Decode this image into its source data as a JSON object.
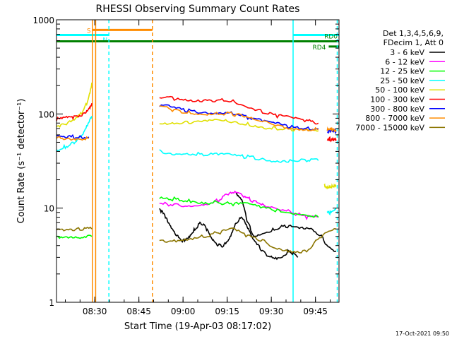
{
  "chart_data": {
    "type": "line",
    "title": "RHESSI Observing Summary Count Rates",
    "xlabel": "Start Time (19-Apr-03 08:17:02)",
    "ylabel": "Count Rate (s⁻¹ detector⁻¹)",
    "yscale": "log",
    "ylim": [
      1,
      1000
    ],
    "xlim_minutes": [
      0,
      96
    ],
    "x_ticks": [
      {
        "label": "08:30",
        "minute": 13
      },
      {
        "label": "08:45",
        "minute": 28
      },
      {
        "label": "09:00",
        "minute": 43
      },
      {
        "label": "09:15",
        "minute": 58
      },
      {
        "label": "09:30",
        "minute": 73
      },
      {
        "label": "09:45",
        "minute": 88
      }
    ],
    "y_ticks": [
      {
        "label": "1",
        "value": 1
      },
      {
        "label": "10",
        "value": 10
      },
      {
        "label": "100",
        "value": 100
      },
      {
        "label": "1000",
        "value": 1000
      }
    ],
    "legend_header": [
      "Det 1,3,4,5,6,9,",
      "FDecim 1, Att 0"
    ],
    "legend_placement": "right",
    "series": [
      {
        "name": "3 - 6 keV",
        "color": "#000000",
        "segments": [
          {
            "x": [
              61,
              63,
              65,
              67,
              70,
              74,
              78,
              82,
              86,
              90,
              92,
              95
            ],
            "y": [
              14,
              12,
              7,
              5,
              5.5,
              6,
              6.5,
              6,
              6,
              5,
              4,
              3.5
            ]
          },
          {
            "x": [
              35,
              37,
              39,
              41,
              43,
              45,
              47,
              49,
              51,
              53,
              55,
              57,
              59,
              61,
              63,
              65,
              67,
              70,
              73,
              76,
              79,
              82
            ],
            "y": [
              10,
              8,
              6,
              5,
              4.5,
              5,
              6,
              7,
              6,
              4.5,
              4,
              4,
              5,
              7,
              8,
              6,
              4.5,
              3.5,
              3,
              3,
              3.5,
              3
            ]
          }
        ]
      },
      {
        "name": "6 - 12 keV",
        "color": "#ff00ff",
        "segments": [
          {
            "x": [
              35,
              40,
              45,
              50,
              55,
              58,
              61,
              64,
              67,
              70,
              75,
              80,
              85,
              89
            ],
            "y": [
              11,
              11,
              10.5,
              11,
              12,
              14,
              14.5,
              13,
              12,
              11,
              10,
              9,
              8,
              8
            ]
          }
        ]
      },
      {
        "name": "12 - 25 keV",
        "color": "#00ff00",
        "segments": [
          {
            "x": [
              0,
              4,
              8,
              12
            ],
            "y": [
              5,
              5,
              5,
              5
            ]
          },
          {
            "x": [
              35,
              40,
              45,
              50,
              55,
              60,
              65,
              70,
              75,
              80,
              85,
              89
            ],
            "y": [
              12.5,
              12.5,
              12,
              11.5,
              11.5,
              11,
              11,
              10,
              9.5,
              9,
              8.5,
              8
            ]
          }
        ]
      },
      {
        "name": "25 - 50 keV",
        "color": "#00ffff",
        "segments": [
          {
            "x": [
              0,
              3,
              6,
              9,
              11,
              12
            ],
            "y": [
              42,
              45,
              50,
              60,
              80,
              95
            ]
          },
          {
            "x": [
              35,
              40,
              45,
              50,
              55,
              60,
              65,
              70,
              75,
              80,
              85,
              89
            ],
            "y": [
              40,
              38,
              38,
              37,
              37,
              36,
              35,
              33,
              32,
              32,
              32,
              32
            ]
          },
          {
            "x": [
              92,
              93,
              94,
              95
            ],
            "y": [
              9,
              9,
              9.5,
              10
            ]
          }
        ]
      },
      {
        "name": "50 - 100 keV",
        "color": "#e0e000",
        "segments": [
          {
            "x": [
              0,
              3,
              6,
              9,
              11,
              12
            ],
            "y": [
              75,
              78,
              85,
              105,
              150,
              215
            ]
          },
          {
            "x": [
              35,
              40,
              45,
              50,
              55,
              60,
              65,
              70,
              75,
              80,
              85,
              89
            ],
            "y": [
              82,
              80,
              80,
              82,
              85,
              82,
              78,
              73,
              70,
              68,
              67,
              66
            ]
          },
          {
            "x": [
              91,
              92,
              93,
              94,
              95
            ],
            "y": [
              17,
              17,
              17,
              17,
              17
            ]
          }
        ]
      },
      {
        "name": "100 - 300 keV",
        "color": "#ff0000",
        "segments": [
          {
            "x": [
              0,
              3,
              6,
              9,
              11,
              12
            ],
            "y": [
              88,
              90,
              92,
              100,
              115,
              130
            ]
          },
          {
            "x": [
              35,
              40,
              45,
              50,
              55,
              60,
              65,
              70,
              75,
              80,
              85,
              89
            ],
            "y": [
              155,
              145,
              135,
              135,
              140,
              138,
              120,
              105,
              95,
              90,
              85,
              80
            ]
          },
          {
            "x": [
              92,
              93,
              94,
              95
            ],
            "y": [
              55,
              54,
              53,
              52
            ]
          }
        ]
      },
      {
        "name": "300 - 800 keV",
        "color": "#0000ff",
        "segments": [
          {
            "x": [
              0,
              4,
              8,
              11
            ],
            "y": [
              57,
              57,
              57,
              57
            ]
          },
          {
            "x": [
              35,
              40,
              45,
              50,
              55,
              60,
              65,
              70,
              75,
              80,
              85,
              89
            ],
            "y": [
              125,
              115,
              108,
              103,
              105,
              103,
              92,
              85,
              78,
              72,
              70,
              70
            ]
          },
          {
            "x": [
              92,
              93,
              94,
              95
            ],
            "y": [
              65,
              65,
              65,
              65
            ]
          }
        ]
      },
      {
        "name": "800 - 7000 keV",
        "color": "#ff8c00",
        "segments": [
          {
            "x": [
              0,
              4,
              8,
              11
            ],
            "y": [
              55,
              55,
              55,
              55
            ]
          },
          {
            "x": [
              35,
              40,
              45,
              50,
              55,
              60,
              65,
              70,
              75,
              80,
              85,
              89
            ],
            "y": [
              120,
              110,
              104,
              100,
              102,
              100,
              90,
              82,
              76,
              71,
              69,
              68
            ]
          },
          {
            "x": [
              92,
              93,
              94,
              95
            ],
            "y": [
              68,
              68,
              68,
              68
            ]
          }
        ]
      },
      {
        "name": "7000 - 15000 keV",
        "color": "#8b7500",
        "segments": [
          {
            "x": [
              0,
              4,
              8,
              12
            ],
            "y": [
              6,
              6,
              6,
              6
            ]
          },
          {
            "x": [
              35,
              40,
              45,
              50,
              55,
              60,
              65,
              70,
              75,
              80,
              85,
              90,
              95
            ],
            "y": [
              4.5,
              4.5,
              4.8,
              5,
              5.5,
              6,
              5,
              4.5,
              3.8,
              3.5,
              3.5,
              5,
              6
            ]
          }
        ]
      }
    ],
    "vertical_lines": [
      {
        "minute": 12.2,
        "color": "#ff8c00",
        "style": "solid"
      },
      {
        "minute": 13.3,
        "color": "#ff8c00",
        "style": "solid"
      },
      {
        "minute": 17.8,
        "color": "#00ffff",
        "style": "dashed"
      },
      {
        "minute": 32.6,
        "color": "#ff8c00",
        "style": "dashed"
      },
      {
        "minute": 80.4,
        "color": "#00ffff",
        "style": "solid"
      },
      {
        "minute": 95.4,
        "color": "#00ffff",
        "style": "dashed"
      }
    ],
    "bars": [
      {
        "label": "S",
        "color": "#ff8c00",
        "from": 12.2,
        "to": 32.6,
        "level": 780
      },
      {
        "label": "N",
        "color": "#00ffff",
        "from": 0,
        "to": 17.8,
        "level": 690
      },
      {
        "label": "",
        "color": "#00ffff",
        "from": 80.4,
        "to": 96,
        "level": 690
      },
      {
        "label": "RD0",
        "color": "#008000",
        "from": 0,
        "to": 96,
        "level": 590
      },
      {
        "label": "RD4",
        "color": "#008000",
        "from": 92.5,
        "to": 96,
        "level": 520
      }
    ],
    "footer_timestamp": "17-Oct-2021 09:50",
    "grid": false
  }
}
